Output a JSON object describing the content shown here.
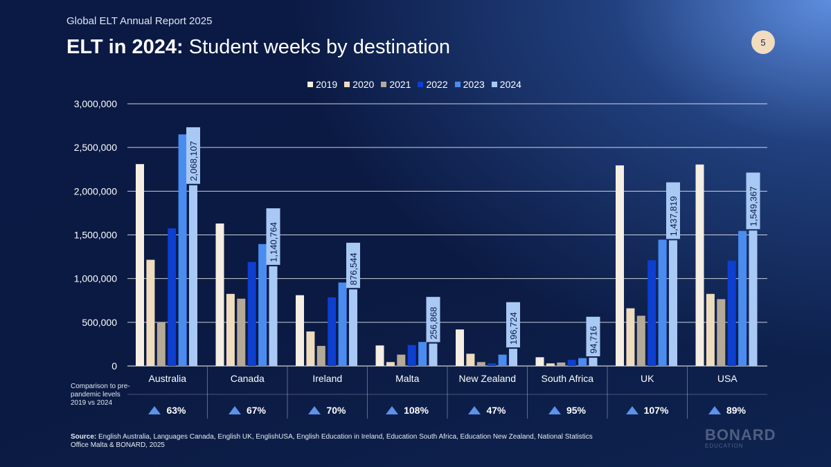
{
  "header": {
    "supertitle": "Global ELT Annual Report 2025",
    "title_bold": "ELT in 2024:",
    "title_rest": " Student weeks by destination",
    "page_number": "5"
  },
  "comparison": {
    "label": "Comparison to pre-pandemic levels 2019 vs 2024",
    "values": [
      "63%",
      "67%",
      "70%",
      "108%",
      "47%",
      "95%",
      "107%",
      "89%"
    ]
  },
  "source": {
    "label": "Source:",
    "text": " English Australia, Languages Canada, English UK, EnglishUSA, English Education in Ireland, Education South Africa, Education New Zealand, National Statistics Office Malta & BONARD, 2025"
  },
  "logo": {
    "main": "BONARD",
    "sub": "EDUCATION"
  },
  "chart_data": {
    "type": "bar",
    "categories": [
      "Australia",
      "Canada",
      "Ireland",
      "Malta",
      "New Zealand",
      "South Africa",
      "UK",
      "USA"
    ],
    "series": [
      {
        "name": "2019",
        "color": "#f5eee2",
        "values": [
          2310000,
          1630000,
          810000,
          235000,
          418000,
          100000,
          2295000,
          2305000
        ]
      },
      {
        "name": "2020",
        "color": "#efdcbd",
        "values": [
          1215000,
          825000,
          395000,
          45000,
          140000,
          30000,
          660000,
          825000
        ]
      },
      {
        "name": "2021",
        "color": "#b5aa98",
        "values": [
          500000,
          770000,
          230000,
          130000,
          45000,
          40000,
          575000,
          765000
        ]
      },
      {
        "name": "2022",
        "color": "#0d3fd0",
        "values": [
          1575000,
          1190000,
          785000,
          240000,
          30000,
          70000,
          1210000,
          1205000
        ]
      },
      {
        "name": "2023",
        "color": "#4b8cf0",
        "values": [
          2650000,
          1395000,
          955000,
          275000,
          130000,
          90000,
          1445000,
          1545000
        ]
      },
      {
        "name": "2024",
        "color": "#a9c9f5",
        "values": [
          2068107,
          1140764,
          876544,
          256868,
          196724,
          94716,
          1437819,
          1549367
        ]
      }
    ],
    "data_labels_2024": [
      "2,068,107",
      "1,140,764",
      "876,544",
      "256,868",
      "196,724",
      "94,716",
      "1,437,819",
      "1,549,367"
    ],
    "y_ticks": [
      "0",
      "500,000",
      "1,000,000",
      "1,500,000",
      "2,000,000",
      "2,500,000",
      "3,000,000"
    ],
    "ylim": [
      0,
      3000000
    ],
    "grid": true,
    "legend": "top-center"
  }
}
